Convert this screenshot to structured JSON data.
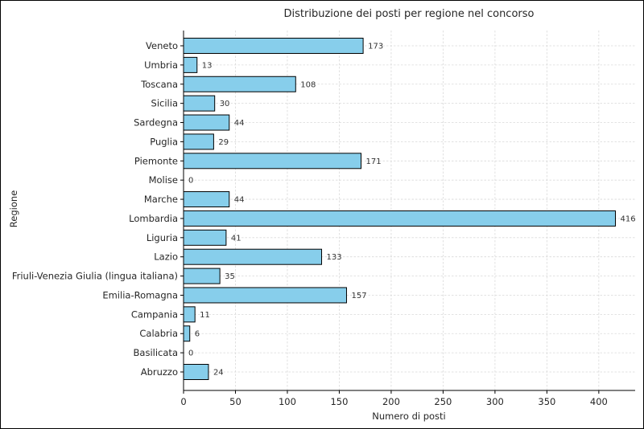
{
  "chart_data": {
    "type": "bar",
    "orientation": "horizontal",
    "title": "Distribuzione dei posti per regione nel concorso",
    "xlabel": "Numero di posti",
    "ylabel": "Regione",
    "categories": [
      "Veneto",
      "Umbria",
      "Toscana",
      "Sicilia",
      "Sardegna",
      "Puglia",
      "Piemonte",
      "Molise",
      "Marche",
      "Lombardia",
      "Liguria",
      "Lazio",
      "Friuli-Venezia Giulia (lingua italiana)",
      "Emilia-Romagna",
      "Campania",
      "Calabria",
      "Basilicata",
      "Abruzzo"
    ],
    "values": [
      173,
      13,
      108,
      30,
      44,
      29,
      171,
      0,
      44,
      416,
      41,
      133,
      35,
      157,
      11,
      6,
      0,
      24
    ],
    "xlim": [
      0,
      435
    ],
    "xticks": [
      0,
      50,
      100,
      150,
      200,
      250,
      300,
      350,
      400
    ],
    "grid": true,
    "bar_color": "#87ceeb",
    "edge_color": "#000000"
  }
}
